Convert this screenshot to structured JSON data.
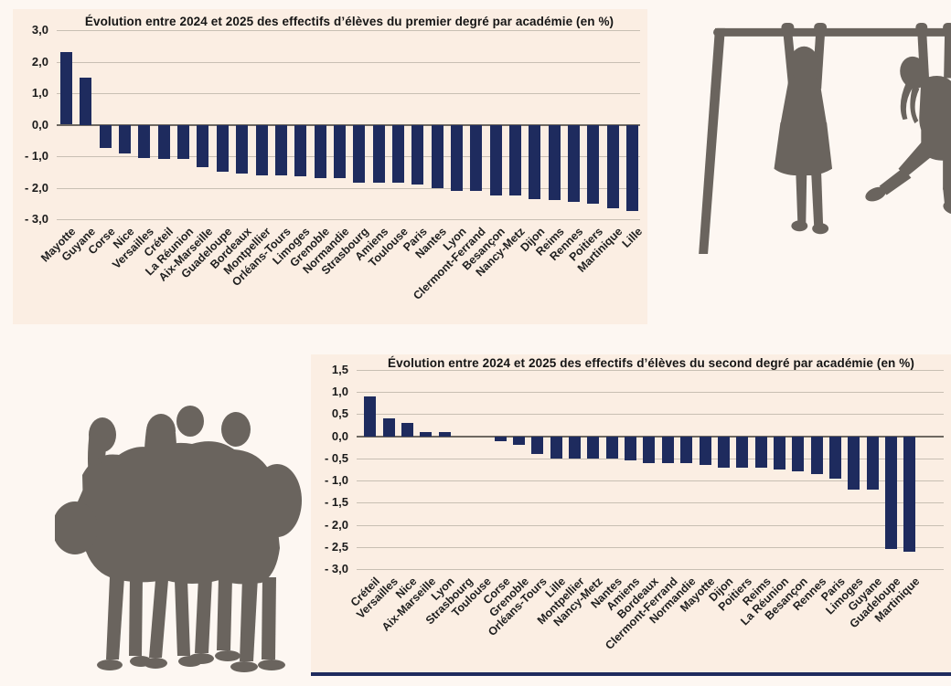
{
  "page": {
    "background": "#fdf7f2",
    "panel_background": "#fbeee3",
    "bar_color": "#1e2b5e",
    "grid_color": "#c8bfb3",
    "silhouette_color": "#6a645e"
  },
  "chart_data": [
    {
      "type": "bar",
      "title": "Évolution entre 2024 et 2025 des effectifs d’élèves du premier degré par académie (en %)",
      "xlabel": "",
      "ylabel": "",
      "ylim": [
        -3.0,
        3.0
      ],
      "yticks": [
        3.0,
        2.0,
        1.0,
        0.0,
        -1.0,
        -2.0,
        -3.0
      ],
      "grid": true,
      "legend": "none",
      "categories": [
        "Mayotte",
        "Guyane",
        "Corse",
        "Nice",
        "Versailles",
        "Créteil",
        "La Réunion",
        "Aix-Marseille",
        "Guadeloupe",
        "Bordeaux",
        "Montpellier",
        "Orléans-Tours",
        "Limoges",
        "Grenoble",
        "Normandie",
        "Strasbourg",
        "Amiens",
        "Toulouse",
        "Paris",
        "Nantes",
        "Lyon",
        "Clermont-Ferrand",
        "Besançon",
        "Nancy-Metz",
        "Dijon",
        "Reims",
        "Rennes",
        "Poitiers",
        "Martinique",
        "Lille"
      ],
      "values": [
        2.3,
        1.5,
        -0.75,
        -0.9,
        -1.05,
        -1.1,
        -1.1,
        -1.35,
        -1.5,
        -1.55,
        -1.6,
        -1.6,
        -1.65,
        -1.7,
        -1.7,
        -1.85,
        -1.85,
        -1.85,
        -1.9,
        -2.0,
        -2.1,
        -2.1,
        -2.25,
        -2.25,
        -2.35,
        -2.4,
        -2.45,
        -2.5,
        -2.65,
        -2.75
      ]
    },
    {
      "type": "bar",
      "title": "Évolution entre 2024 et 2025 des effectifs d’élèves du second degré par académie (en %)",
      "xlabel": "",
      "ylabel": "",
      "ylim": [
        -3.0,
        1.5
      ],
      "yticks": [
        1.5,
        1.0,
        0.5,
        0.0,
        -0.5,
        -1.0,
        -1.5,
        -2.0,
        -2.5,
        -3.0
      ],
      "grid": true,
      "legend": "none",
      "categories": [
        "Créteil",
        "Versailles",
        "Nice",
        "Aix-Marseille",
        "Lyon",
        "Strasbourg",
        "Toulouse",
        "Corse",
        "Grenoble",
        "Orléans-Tours",
        "Lille",
        "Montpellier",
        "Nancy-Metz",
        "Nantes",
        "Amiens",
        "Bordeaux",
        "Clermont-Ferrand",
        "Normandie",
        "Mayotte",
        "Dijon",
        "Poitiers",
        "Reims",
        "La Réunion",
        "Besançon",
        "Rennes",
        "Paris",
        "Limoges",
        "Guyane",
        "Guadeloupe",
        "Martinique"
      ],
      "values": [
        0.9,
        0.4,
        0.3,
        0.1,
        0.1,
        0.0,
        0.0,
        -0.1,
        -0.2,
        -0.4,
        -0.5,
        -0.5,
        -0.5,
        -0.5,
        -0.55,
        -0.6,
        -0.6,
        -0.6,
        -0.65,
        -0.7,
        -0.7,
        -0.7,
        -0.75,
        -0.8,
        -0.85,
        -0.95,
        -1.2,
        -1.2,
        -2.55,
        -2.6
      ]
    }
  ],
  "figures": {
    "playground": "silhouette of two children hanging from monkey bars",
    "students": "silhouette of four teenagers standing in a group"
  }
}
